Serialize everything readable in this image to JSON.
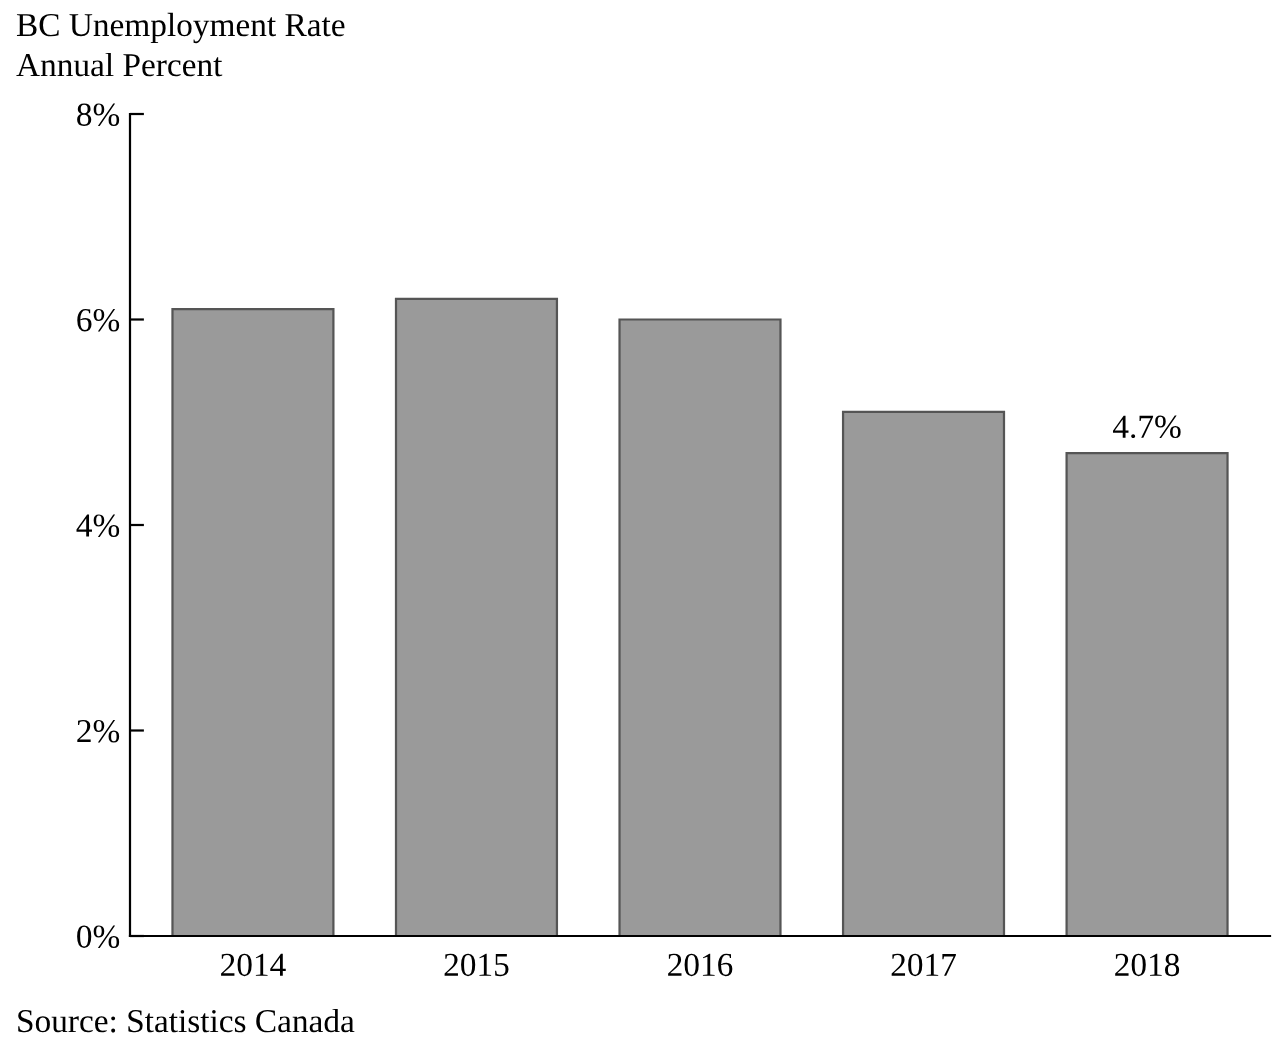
{
  "chart_data": {
    "type": "bar",
    "title": "BC Unemployment Rate",
    "subtitle": "Annual Percent",
    "categories": [
      "2014",
      "2015",
      "2016",
      "2017",
      "2018"
    ],
    "values": [
      6.1,
      6.2,
      6.0,
      5.1,
      4.7
    ],
    "value_labels": [
      null,
      null,
      null,
      null,
      "4.7%"
    ],
    "color": "#9a9a9a",
    "ylim": [
      0,
      8
    ],
    "yticks": [
      {
        "value": 0,
        "label": "0%"
      },
      {
        "value": 2,
        "label": "2%"
      },
      {
        "value": 4,
        "label": "4%"
      },
      {
        "value": 6,
        "label": "6%"
      },
      {
        "value": 8,
        "label": "8%"
      }
    ],
    "grid": false,
    "legend": false,
    "annotations": [
      "Source: Statistics Canada"
    ]
  }
}
